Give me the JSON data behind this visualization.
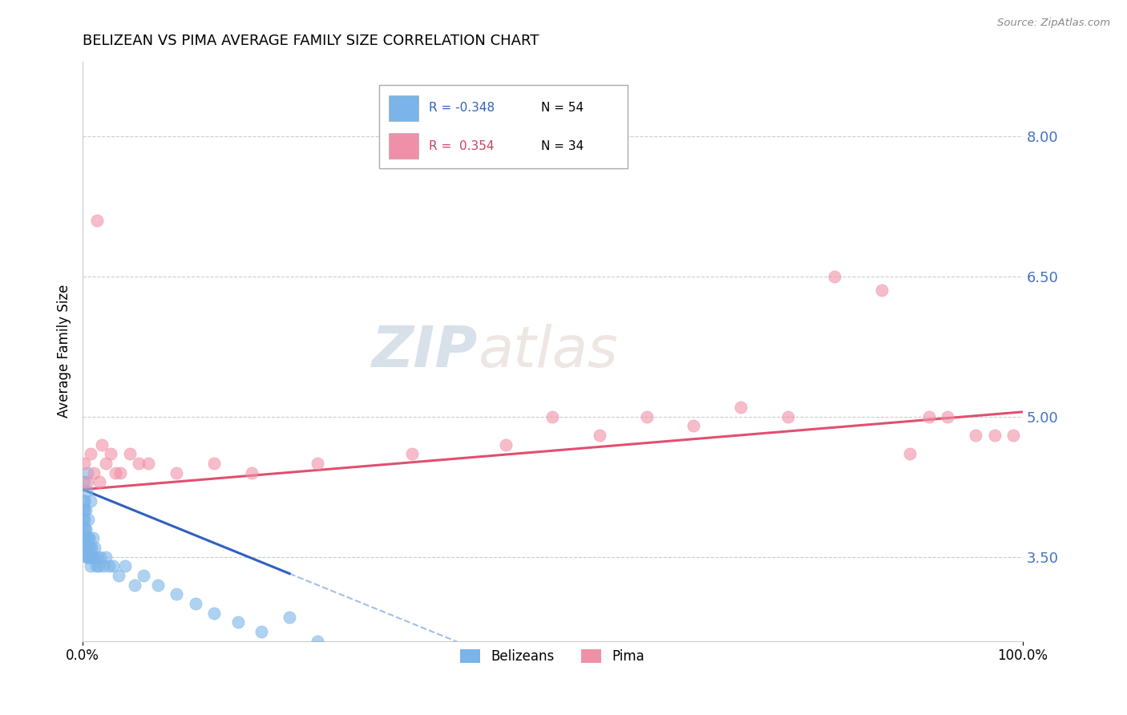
{
  "title": "BELIZEAN VS PIMA AVERAGE FAMILY SIZE CORRELATION CHART",
  "source": "Source: ZipAtlas.com",
  "ylabel": "Average Family Size",
  "xlim": [
    0.0,
    100.0
  ],
  "ylim": [
    2.6,
    8.8
  ],
  "yticks_right": [
    3.5,
    5.0,
    6.5,
    8.0
  ],
  "ytick_labels_right": [
    "3.50",
    "5.00",
    "6.50",
    "8.00"
  ],
  "belizean_color": "#7ab4e8",
  "pima_color": "#f090a8",
  "belizean_trend_color": "#3060c0",
  "pima_trend_color": "#e05070",
  "dashed_color": "#a0c0e8",
  "watermark_zip": "ZIP",
  "watermark_atlas": "atlas",
  "belizean_x": [
    0.05,
    0.08,
    0.1,
    0.12,
    0.15,
    0.18,
    0.2,
    0.22,
    0.25,
    0.3,
    0.35,
    0.4,
    0.45,
    0.5,
    0.55,
    0.6,
    0.65,
    0.7,
    0.75,
    0.8,
    0.85,
    0.9,
    0.95,
    1.0,
    1.1,
    1.2,
    1.3,
    1.4,
    1.5,
    1.7,
    1.9,
    2.2,
    2.5,
    2.8,
    3.2,
    3.8,
    4.5,
    5.5,
    6.5,
    8.0,
    10.0,
    12.0,
    14.0,
    16.5,
    19.0,
    22.0,
    25.0,
    0.15,
    0.2,
    0.3,
    0.4,
    0.6,
    0.5,
    0.8
  ],
  "belizean_y": [
    3.9,
    4.0,
    3.8,
    4.1,
    3.7,
    3.9,
    4.0,
    3.8,
    3.7,
    3.6,
    3.8,
    3.5,
    3.6,
    3.5,
    3.7,
    3.6,
    3.7,
    3.5,
    3.6,
    3.5,
    3.4,
    3.5,
    3.6,
    3.5,
    3.7,
    3.5,
    3.6,
    3.4,
    3.5,
    3.4,
    3.5,
    3.4,
    3.5,
    3.4,
    3.4,
    3.3,
    3.4,
    3.2,
    3.3,
    3.2,
    3.1,
    3.0,
    2.9,
    2.8,
    2.7,
    2.85,
    2.6,
    4.3,
    4.1,
    4.0,
    4.2,
    3.9,
    4.4,
    4.1
  ],
  "pima_x": [
    0.2,
    0.5,
    0.8,
    1.2,
    1.8,
    2.5,
    3.5,
    5.0,
    7.0,
    10.0,
    14.0,
    18.0,
    25.0,
    35.0,
    45.0,
    55.0,
    65.0,
    75.0,
    85.0,
    92.0,
    97.0,
    1.5,
    2.0,
    3.0,
    4.0,
    6.0,
    50.0,
    60.0,
    70.0,
    80.0,
    88.0,
    90.0,
    95.0,
    99.0
  ],
  "pima_y": [
    4.5,
    4.3,
    4.6,
    4.4,
    4.3,
    4.5,
    4.4,
    4.6,
    4.5,
    4.4,
    4.5,
    4.4,
    4.5,
    4.6,
    4.7,
    4.8,
    4.9,
    5.0,
    6.35,
    5.0,
    4.8,
    7.1,
    4.7,
    4.6,
    4.4,
    4.5,
    5.0,
    5.0,
    5.1,
    6.5,
    4.6,
    5.0,
    4.8,
    4.8
  ],
  "legend_r1": "R = -0.348",
  "legend_n1": "N = 54",
  "legend_r2": "R =  0.354",
  "legend_n2": "N = 34"
}
